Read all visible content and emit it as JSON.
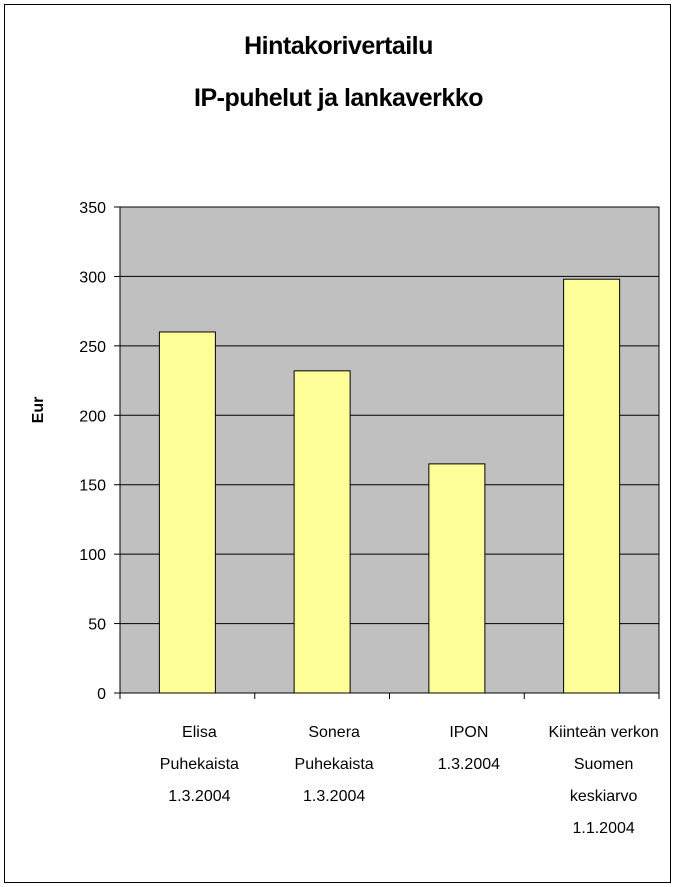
{
  "chart_data": {
    "type": "bar",
    "title": "Hintakorivertailu",
    "subtitle": "IP-puhelut ja lankaverkko",
    "ylabel": "Eur",
    "xlabel": "",
    "ylim": [
      0,
      350
    ],
    "yticks": [
      0,
      50,
      100,
      150,
      200,
      250,
      300,
      350
    ],
    "grid": true,
    "legend": "none",
    "categories": [
      "Elisa Puhekaista 1.3.2004",
      "Sonera Puhekaista 1.3.2004",
      "IPON 1.3.2004",
      "Kiinteän verkon Suomen keskiarvo 1.1.2004"
    ],
    "category_lines": [
      [
        "Elisa",
        "Puhekaista",
        "1.3.2004"
      ],
      [
        "Sonera",
        "Puhekaista",
        "1.3.2004"
      ],
      [
        "IPON",
        "1.3.2004"
      ],
      [
        "Kiinteän verkon",
        "Suomen",
        "keskiarvo",
        "1.1.2004"
      ]
    ],
    "values": [
      260,
      232,
      165,
      298
    ],
    "colors": {
      "bar": "#ffff99",
      "plot_bg": "#c0c0c0",
      "grid": "#000000",
      "border": "#000000"
    }
  }
}
